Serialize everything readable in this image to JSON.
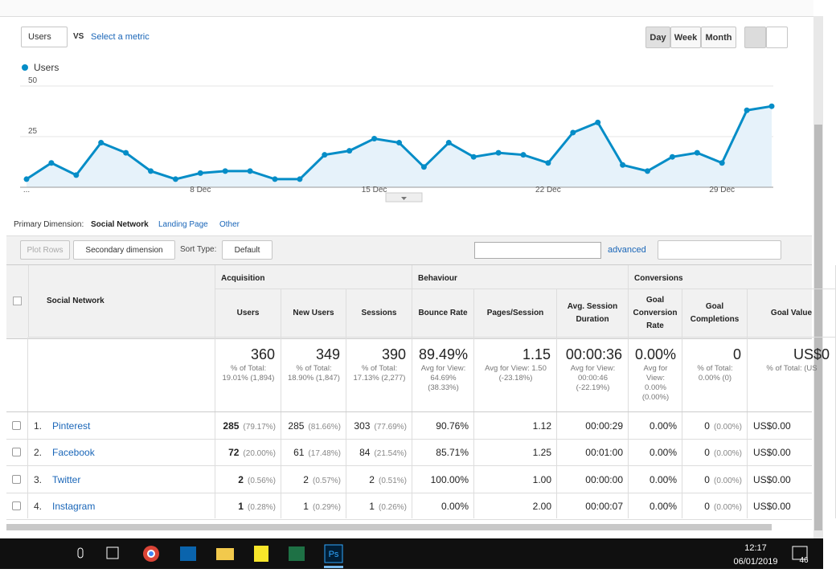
{
  "toolbar": {
    "metric": "Users",
    "vs": "VS",
    "compare": "Select a metric",
    "periods": [
      "Day",
      "Week",
      "Month"
    ]
  },
  "chart_data": {
    "type": "line",
    "categories": [
      "...",
      null,
      null,
      null,
      null,
      null,
      null,
      "8 Dec",
      null,
      null,
      null,
      null,
      null,
      null,
      "15 Dec",
      null,
      null,
      null,
      null,
      null,
      null,
      "22 Dec",
      null,
      null,
      null,
      null,
      null,
      null,
      "29 Dec",
      null,
      null
    ],
    "series": [
      {
        "name": "Users",
        "color": "#058dc7",
        "values": [
          4,
          12,
          6,
          22,
          17,
          8,
          4,
          7,
          8,
          8,
          4,
          4,
          16,
          18,
          24,
          22,
          10,
          22,
          15,
          17,
          16,
          12,
          27,
          32,
          11,
          8,
          15,
          17,
          12,
          38,
          40
        ]
      }
    ],
    "ylim": [
      0,
      50
    ],
    "yticks": [
      25,
      50
    ],
    "grid": true
  },
  "dimensions": {
    "label": "Primary Dimension:",
    "options": [
      "Social Network",
      "Landing Page",
      "Other"
    ]
  },
  "controls": {
    "plot_rows": "Plot Rows",
    "secondary": "Secondary dimension",
    "sort_label": "Sort Type:",
    "sort": "Default",
    "advanced": "advanced"
  },
  "table": {
    "groups": [
      "Acquisition",
      "Behaviour",
      "Conversions"
    ],
    "columns": [
      "Social Network",
      "Users",
      "New Users",
      "Sessions",
      "Bounce Rate",
      "Pages/Session",
      "Avg. Session Duration",
      "Goal Conversion Rate",
      "Goal Completions",
      "Goal Value"
    ],
    "totals": [
      {
        "value": "360",
        "note": "% of Total: 19.01% (1,894)"
      },
      {
        "value": "349",
        "note": "% of Total: 18.90% (1,847)"
      },
      {
        "value": "390",
        "note": "% of Total: 17.13% (2,277)"
      },
      {
        "value": "89.49%",
        "note": "Avg for View: 64.69% (38.33%)"
      },
      {
        "value": "1.15",
        "note": "Avg for View: 1.50 (-23.18%)"
      },
      {
        "value": "00:00:36",
        "note": "Avg for View: 00:00:46 (-22.19%)"
      },
      {
        "value": "0.00%",
        "note": "Avg for View: 0.00% (0.00%)"
      },
      {
        "value": "0",
        "note": "% of Total: 0.00% (0)"
      },
      {
        "value": "US$0",
        "note": "% of Total: (US"
      }
    ],
    "rows": [
      {
        "index": "1.",
        "name": "Pinterest",
        "cells": [
          {
            "value": "285",
            "pct": "(79.17%)"
          },
          {
            "value": "285",
            "pct": "(81.66%)"
          },
          {
            "value": "303",
            "pct": "(77.69%)"
          },
          {
            "value": "90.76%"
          },
          {
            "value": "1.12"
          },
          {
            "value": "00:00:29"
          },
          {
            "value": "0.00%"
          },
          {
            "value": "0",
            "pct": "(0.00%)"
          },
          {
            "value": "US$0.00"
          }
        ]
      },
      {
        "index": "2.",
        "name": "Facebook",
        "cells": [
          {
            "value": "72",
            "pct": "(20.00%)"
          },
          {
            "value": "61",
            "pct": "(17.48%)"
          },
          {
            "value": "84",
            "pct": "(21.54%)"
          },
          {
            "value": "85.71%"
          },
          {
            "value": "1.25"
          },
          {
            "value": "00:01:00"
          },
          {
            "value": "0.00%"
          },
          {
            "value": "0",
            "pct": "(0.00%)"
          },
          {
            "value": "US$0.00"
          }
        ]
      },
      {
        "index": "3.",
        "name": "Twitter",
        "cells": [
          {
            "value": "2",
            "pct": "(0.56%)"
          },
          {
            "value": "2",
            "pct": "(0.57%)"
          },
          {
            "value": "2",
            "pct": "(0.51%)"
          },
          {
            "value": "100.00%"
          },
          {
            "value": "1.00"
          },
          {
            "value": "00:00:00"
          },
          {
            "value": "0.00%"
          },
          {
            "value": "0",
            "pct": "(0.00%)"
          },
          {
            "value": "US$0.00"
          }
        ]
      },
      {
        "index": "4.",
        "name": "Instagram",
        "cells": [
          {
            "value": "1",
            "pct": "(0.28%)"
          },
          {
            "value": "1",
            "pct": "(0.29%)"
          },
          {
            "value": "1",
            "pct": "(0.26%)"
          },
          {
            "value": "0.00%"
          },
          {
            "value": "2.00"
          },
          {
            "value": "00:00:07"
          },
          {
            "value": "0.00%"
          },
          {
            "value": "0",
            "pct": "(0.00%)"
          },
          {
            "value": "US$0.00"
          }
        ]
      }
    ]
  },
  "taskbar": {
    "time": "12:17",
    "date": "06/01/2019",
    "notifications": "46"
  }
}
